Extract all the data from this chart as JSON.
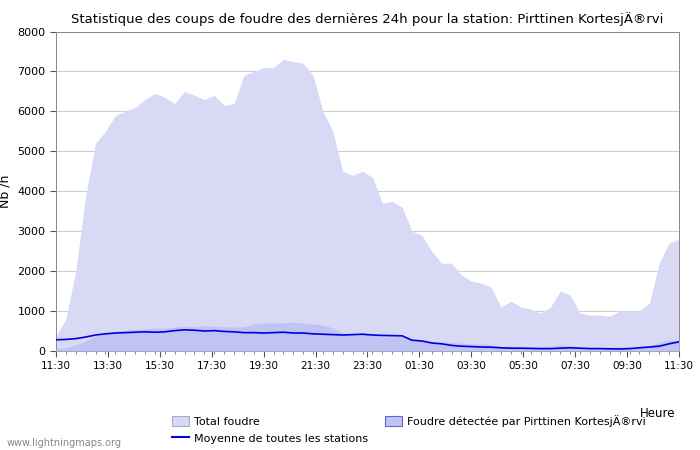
{
  "title": "Statistique des coups de foudre des dernières 24h pour la station: Pirttinen KortesjÄ®rvi",
  "ylabel": "Nb /h",
  "xlabel_right": "Heure",
  "ylim": [
    0,
    8000
  ],
  "yticks": [
    0,
    1000,
    2000,
    3000,
    4000,
    5000,
    6000,
    7000,
    8000
  ],
  "x_labels": [
    "11:30",
    "13:30",
    "15:30",
    "17:30",
    "19:30",
    "21:30",
    "23:30",
    "01:30",
    "03:30",
    "05:30",
    "07:30",
    "09:30",
    "11:30"
  ],
  "bg_color": "#ffffff",
  "plot_bg_color": "#ffffff",
  "grid_color": "#cccccc",
  "area_total_color": "#d8daf5",
  "area_station_color": "#c0c4f5",
  "line_avg_color": "#0000dd",
  "watermark": "www.lightningmaps.org",
  "legend": {
    "total_label": "Total foudre",
    "avg_label": "Moyenne de toutes les stations",
    "station_label": "Foudre détectée par Pirttinen KortesjÄ®rvi"
  },
  "total_foudre": [
    380,
    800,
    2000,
    3900,
    5200,
    5500,
    5900,
    6000,
    6100,
    6300,
    6450,
    6350,
    6200,
    6500,
    6400,
    6300,
    6400,
    6150,
    6200,
    6900,
    7000,
    7100,
    7100,
    7300,
    7250,
    7200,
    6900,
    6000,
    5500,
    4500,
    4400,
    4500,
    4350,
    3700,
    3750,
    3600,
    3000,
    2900,
    2500,
    2200,
    2200,
    1900,
    1750,
    1700,
    1600,
    1100,
    1250,
    1100,
    1050,
    950,
    1100,
    1500,
    1400,
    950,
    900,
    900,
    870,
    1000,
    1000,
    1000,
    1200,
    2200,
    2700,
    2800
  ],
  "avg_line": [
    280,
    290,
    310,
    350,
    400,
    430,
    450,
    460,
    470,
    480,
    470,
    480,
    510,
    530,
    520,
    500,
    510,
    490,
    480,
    460,
    460,
    450,
    460,
    470,
    450,
    450,
    430,
    420,
    410,
    400,
    410,
    420,
    400,
    390,
    385,
    380,
    270,
    250,
    200,
    180,
    140,
    120,
    110,
    100,
    95,
    80,
    70,
    70,
    65,
    60,
    60,
    70,
    80,
    70,
    60,
    60,
    55,
    50,
    60,
    80,
    100,
    120,
    180,
    230
  ],
  "station_foudre": [
    60,
    80,
    150,
    250,
    380,
    420,
    500,
    520,
    540,
    550,
    580,
    570,
    600,
    620,
    610,
    630,
    620,
    610,
    600,
    610,
    680,
    700,
    700,
    710,
    720,
    710,
    680,
    650,
    580,
    450,
    440,
    450,
    435,
    370,
    375,
    360,
    300,
    290,
    250,
    220,
    220,
    190,
    175,
    170,
    160,
    110,
    125,
    110,
    105,
    95,
    110,
    150,
    140,
    95,
    90,
    90,
    87,
    100,
    100,
    100,
    120,
    220,
    270,
    280
  ],
  "n_ticks_minor": 63
}
